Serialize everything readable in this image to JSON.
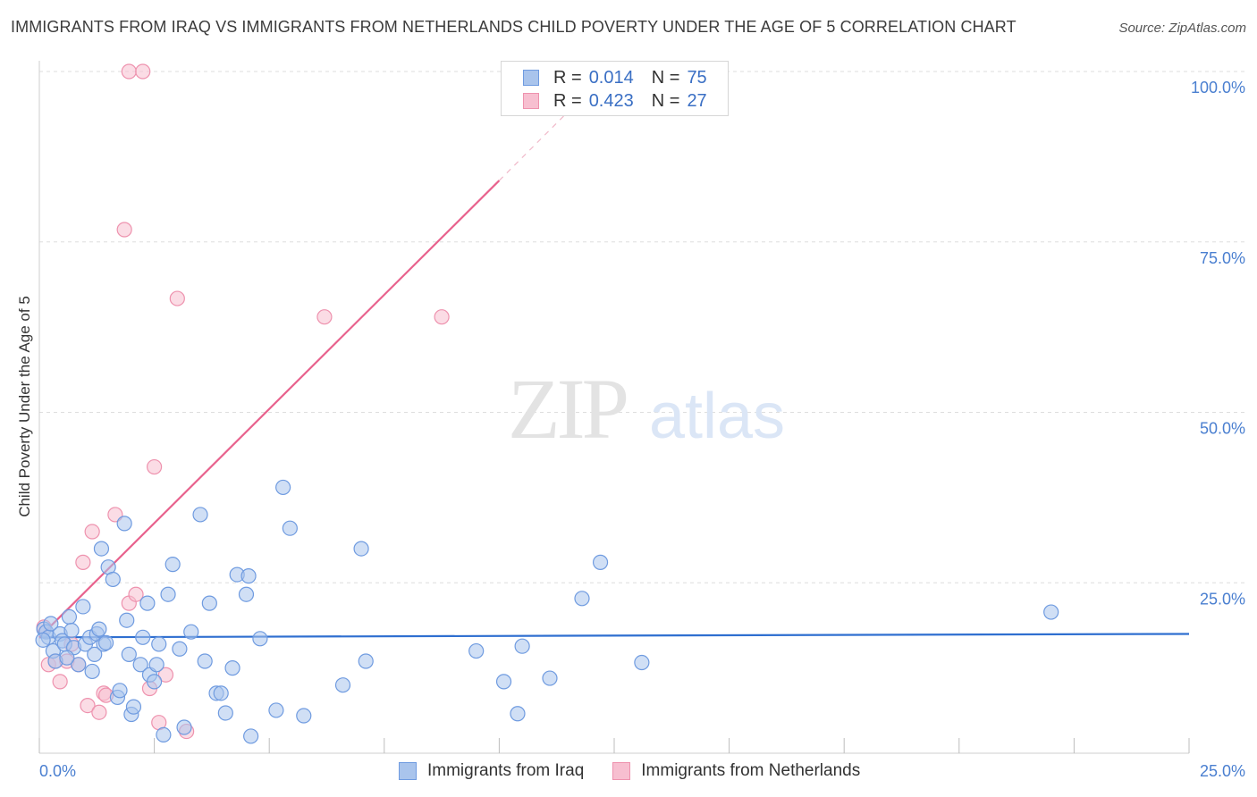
{
  "title": "IMMIGRANTS FROM IRAQ VS IMMIGRANTS FROM NETHERLANDS CHILD POVERTY UNDER THE AGE OF 5 CORRELATION CHART",
  "source": "Source: ZipAtlas.com",
  "watermark": {
    "zip": "ZIP",
    "atlas": "atlas"
  },
  "legend": {
    "iraq": {
      "r_label": "R =",
      "r_value": "0.014",
      "n_label": "N =",
      "n_value": "75"
    },
    "netherlands": {
      "r_label": "R =",
      "r_value": "0.423",
      "n_label": "N =",
      "n_value": "27"
    }
  },
  "bottom_legend": {
    "iraq": "Immigrants from Iraq",
    "netherlands": "Immigrants from Netherlands"
  },
  "colors": {
    "iraq_fill": "#a9c4ec",
    "iraq_stroke": "#6f9be0",
    "iraq_line": "#2f6fd0",
    "nl_fill": "#f7bfd0",
    "nl_stroke": "#ee92ae",
    "nl_line": "#e8628d",
    "axis_text": "#4a7fd0",
    "grid": "#dedede"
  },
  "chart_data": {
    "type": "scatter",
    "title": "IMMIGRANTS FROM IRAQ VS IMMIGRANTS FROM NETHERLANDS CHILD POVERTY UNDER THE AGE OF 5 CORRELATION CHART",
    "xlabel": "",
    "ylabel": "Child Poverty Under the Age of 5",
    "xlim": [
      0,
      25
    ],
    "ylim": [
      0,
      100
    ],
    "x_ticks": [
      "0.0%",
      "25.0%"
    ],
    "y_ticks": [
      {
        "value": 25,
        "label": "25.0%"
      },
      {
        "value": 50,
        "label": "50.0%"
      },
      {
        "value": 75,
        "label": "75.0%"
      },
      {
        "value": 100,
        "label": "100.0%"
      }
    ],
    "series": [
      {
        "name": "Immigrants from Iraq",
        "r": 0.014,
        "n": 75,
        "trend": {
          "x0": 0.0,
          "y0": 17.0,
          "x1": 25.0,
          "y1": 17.5
        },
        "points": [
          [
            0.1,
            18.2
          ],
          [
            0.15,
            17.8
          ],
          [
            0.2,
            17.0
          ],
          [
            0.25,
            19.0
          ],
          [
            0.3,
            15.0
          ],
          [
            0.35,
            13.5
          ],
          [
            0.45,
            17.5
          ],
          [
            0.5,
            16.5
          ],
          [
            0.55,
            16.0
          ],
          [
            0.65,
            20.0
          ],
          [
            0.7,
            18.0
          ],
          [
            0.75,
            15.5
          ],
          [
            0.85,
            13.0
          ],
          [
            0.95,
            21.5
          ],
          [
            1.0,
            16.0
          ],
          [
            1.1,
            17.0
          ],
          [
            1.15,
            12.0
          ],
          [
            1.2,
            14.5
          ],
          [
            1.25,
            17.5
          ],
          [
            1.3,
            18.2
          ],
          [
            1.35,
            30.0
          ],
          [
            1.4,
            16.0
          ],
          [
            1.5,
            27.3
          ],
          [
            1.6,
            25.5
          ],
          [
            1.7,
            8.2
          ],
          [
            1.75,
            9.2
          ],
          [
            1.85,
            33.7
          ],
          [
            1.9,
            19.5
          ],
          [
            1.95,
            14.5
          ],
          [
            2.0,
            5.7
          ],
          [
            2.05,
            6.8
          ],
          [
            2.2,
            13.0
          ],
          [
            2.25,
            17.0
          ],
          [
            2.35,
            22.0
          ],
          [
            2.4,
            11.5
          ],
          [
            2.5,
            10.5
          ],
          [
            2.55,
            13.0
          ],
          [
            2.6,
            16.0
          ],
          [
            2.7,
            2.7
          ],
          [
            2.8,
            23.3
          ],
          [
            2.9,
            27.7
          ],
          [
            3.05,
            15.3
          ],
          [
            3.15,
            3.8
          ],
          [
            3.3,
            17.8
          ],
          [
            3.5,
            35.0
          ],
          [
            3.6,
            13.5
          ],
          [
            3.7,
            22.0
          ],
          [
            3.85,
            8.8
          ],
          [
            3.95,
            8.8
          ],
          [
            4.05,
            5.9
          ],
          [
            4.2,
            12.5
          ],
          [
            4.3,
            26.2
          ],
          [
            4.5,
            23.3
          ],
          [
            4.55,
            26.0
          ],
          [
            4.6,
            2.5
          ],
          [
            4.8,
            16.8
          ],
          [
            5.15,
            6.3
          ],
          [
            5.3,
            39.0
          ],
          [
            5.45,
            33.0
          ],
          [
            5.75,
            5.5
          ],
          [
            6.6,
            10.0
          ],
          [
            7.0,
            30.0
          ],
          [
            7.1,
            13.5
          ],
          [
            9.5,
            15.0
          ],
          [
            10.1,
            10.5
          ],
          [
            10.4,
            5.8
          ],
          [
            10.5,
            15.7
          ],
          [
            11.1,
            11.0
          ],
          [
            11.8,
            22.7
          ],
          [
            12.2,
            28.0
          ],
          [
            13.1,
            13.3
          ],
          [
            22.0,
            20.7
          ],
          [
            0.08,
            16.6
          ],
          [
            0.6,
            14.0
          ],
          [
            1.45,
            16.2
          ]
        ]
      },
      {
        "name": "Immigrants from Netherlands",
        "r": 0.423,
        "n": 27,
        "trend": {
          "x0": 0.0,
          "y0": 17.0,
          "x1": 10.0,
          "y1": 84.0
        },
        "trend_dashed_to": {
          "x": 12.0,
          "y": 97.5
        },
        "points": [
          [
            0.1,
            18.5
          ],
          [
            0.2,
            13.0
          ],
          [
            0.35,
            13.5
          ],
          [
            0.45,
            10.5
          ],
          [
            0.6,
            13.5
          ],
          [
            0.7,
            16.0
          ],
          [
            0.85,
            13.0
          ],
          [
            0.95,
            28.0
          ],
          [
            1.05,
            7.0
          ],
          [
            1.15,
            32.5
          ],
          [
            1.3,
            6.0
          ],
          [
            1.4,
            8.8
          ],
          [
            1.45,
            8.5
          ],
          [
            1.65,
            35.0
          ],
          [
            1.95,
            22.0
          ],
          [
            2.1,
            23.3
          ],
          [
            2.4,
            9.5
          ],
          [
            2.5,
            42.0
          ],
          [
            2.6,
            4.5
          ],
          [
            2.75,
            11.5
          ],
          [
            3.2,
            3.2
          ],
          [
            3.0,
            66.7
          ],
          [
            1.85,
            76.8
          ],
          [
            1.95,
            100.0
          ],
          [
            2.25,
            100.0
          ],
          [
            6.2,
            64.0
          ],
          [
            8.75,
            64.0
          ]
        ]
      }
    ]
  }
}
